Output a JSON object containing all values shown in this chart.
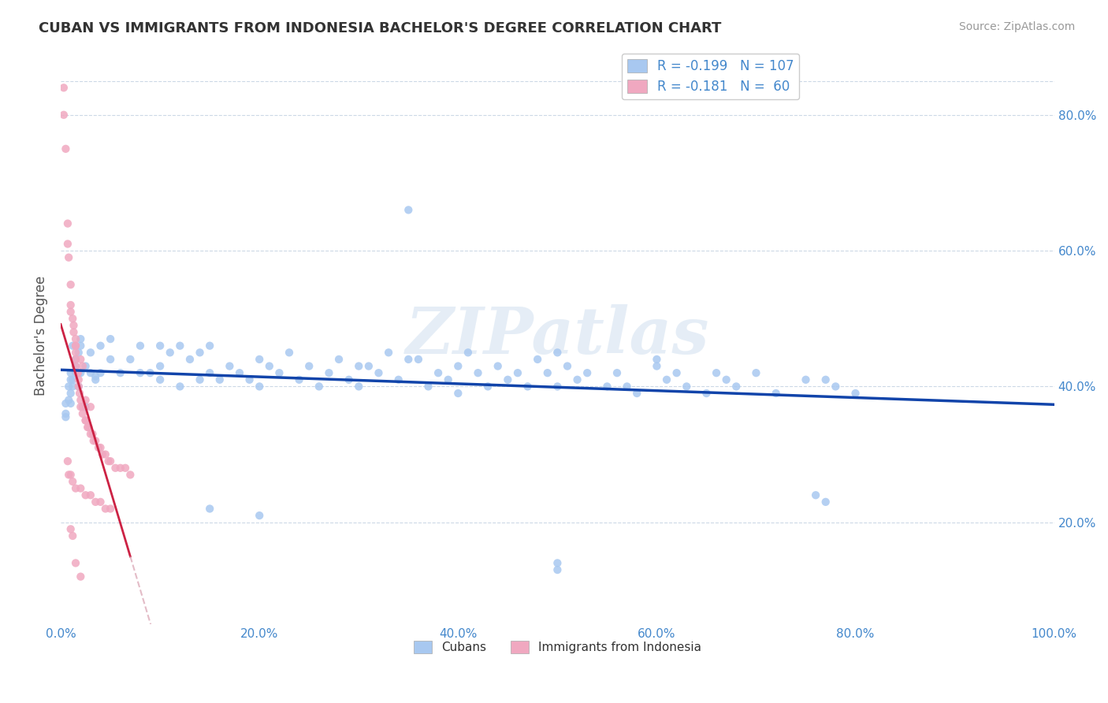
{
  "title": "CUBAN VS IMMIGRANTS FROM INDONESIA BACHELOR'S DEGREE CORRELATION CHART",
  "source": "Source: ZipAtlas.com",
  "ylabel": "Bachelor's Degree",
  "xlim": [
    0,
    1.0
  ],
  "ylim": [
    0.05,
    0.9
  ],
  "xtick_vals": [
    0.0,
    0.2,
    0.4,
    0.6,
    0.8,
    1.0
  ],
  "ytick_vals": [
    0.2,
    0.4,
    0.6,
    0.8
  ],
  "cubans_color": "#A8C8F0",
  "indonesia_color": "#F0A8C0",
  "trendline_cubans_color": "#1144AA",
  "trendline_indonesia_color": "#CC2244",
  "trendline_indonesia_dash_color": "#D8A0B0",
  "watermark": "ZIPatlas",
  "cubans_scatter": [
    [
      0.005,
      0.375
    ],
    [
      0.005,
      0.355
    ],
    [
      0.005,
      0.36
    ],
    [
      0.008,
      0.4
    ],
    [
      0.008,
      0.38
    ],
    [
      0.01,
      0.42
    ],
    [
      0.01,
      0.39
    ],
    [
      0.01,
      0.375
    ],
    [
      0.01,
      0.41
    ],
    [
      0.012,
      0.41
    ],
    [
      0.012,
      0.4
    ],
    [
      0.012,
      0.46
    ],
    [
      0.015,
      0.44
    ],
    [
      0.015,
      0.43
    ],
    [
      0.015,
      0.42
    ],
    [
      0.018,
      0.45
    ],
    [
      0.018,
      0.42
    ],
    [
      0.018,
      0.4
    ],
    [
      0.02,
      0.47
    ],
    [
      0.02,
      0.42
    ],
    [
      0.02,
      0.46
    ],
    [
      0.025,
      0.43
    ],
    [
      0.025,
      0.37
    ],
    [
      0.03,
      0.45
    ],
    [
      0.03,
      0.42
    ],
    [
      0.035,
      0.415
    ],
    [
      0.035,
      0.41
    ],
    [
      0.04,
      0.46
    ],
    [
      0.04,
      0.42
    ],
    [
      0.05,
      0.47
    ],
    [
      0.05,
      0.44
    ],
    [
      0.06,
      0.42
    ],
    [
      0.07,
      0.44
    ],
    [
      0.08,
      0.46
    ],
    [
      0.08,
      0.42
    ],
    [
      0.09,
      0.42
    ],
    [
      0.1,
      0.46
    ],
    [
      0.1,
      0.43
    ],
    [
      0.1,
      0.41
    ],
    [
      0.11,
      0.45
    ],
    [
      0.12,
      0.46
    ],
    [
      0.12,
      0.4
    ],
    [
      0.13,
      0.44
    ],
    [
      0.14,
      0.45
    ],
    [
      0.14,
      0.41
    ],
    [
      0.15,
      0.42
    ],
    [
      0.15,
      0.46
    ],
    [
      0.16,
      0.41
    ],
    [
      0.17,
      0.43
    ],
    [
      0.18,
      0.42
    ],
    [
      0.19,
      0.41
    ],
    [
      0.2,
      0.44
    ],
    [
      0.2,
      0.4
    ],
    [
      0.21,
      0.43
    ],
    [
      0.22,
      0.42
    ],
    [
      0.23,
      0.45
    ],
    [
      0.24,
      0.41
    ],
    [
      0.25,
      0.43
    ],
    [
      0.26,
      0.4
    ],
    [
      0.27,
      0.42
    ],
    [
      0.28,
      0.44
    ],
    [
      0.29,
      0.41
    ],
    [
      0.3,
      0.43
    ],
    [
      0.3,
      0.4
    ],
    [
      0.31,
      0.43
    ],
    [
      0.32,
      0.42
    ],
    [
      0.33,
      0.45
    ],
    [
      0.34,
      0.41
    ],
    [
      0.35,
      0.66
    ],
    [
      0.35,
      0.44
    ],
    [
      0.36,
      0.44
    ],
    [
      0.37,
      0.4
    ],
    [
      0.38,
      0.42
    ],
    [
      0.39,
      0.41
    ],
    [
      0.4,
      0.43
    ],
    [
      0.4,
      0.39
    ],
    [
      0.41,
      0.45
    ],
    [
      0.42,
      0.42
    ],
    [
      0.43,
      0.4
    ],
    [
      0.44,
      0.43
    ],
    [
      0.45,
      0.41
    ],
    [
      0.46,
      0.42
    ],
    [
      0.47,
      0.4
    ],
    [
      0.48,
      0.44
    ],
    [
      0.49,
      0.42
    ],
    [
      0.5,
      0.14
    ],
    [
      0.5,
      0.13
    ],
    [
      0.5,
      0.45
    ],
    [
      0.5,
      0.4
    ],
    [
      0.51,
      0.43
    ],
    [
      0.52,
      0.41
    ],
    [
      0.53,
      0.42
    ],
    [
      0.55,
      0.4
    ],
    [
      0.56,
      0.42
    ],
    [
      0.57,
      0.4
    ],
    [
      0.58,
      0.39
    ],
    [
      0.6,
      0.43
    ],
    [
      0.6,
      0.44
    ],
    [
      0.61,
      0.41
    ],
    [
      0.62,
      0.42
    ],
    [
      0.63,
      0.4
    ],
    [
      0.65,
      0.39
    ],
    [
      0.66,
      0.42
    ],
    [
      0.67,
      0.41
    ],
    [
      0.68,
      0.4
    ],
    [
      0.7,
      0.42
    ],
    [
      0.72,
      0.39
    ],
    [
      0.75,
      0.41
    ],
    [
      0.76,
      0.24
    ],
    [
      0.77,
      0.23
    ],
    [
      0.77,
      0.41
    ],
    [
      0.78,
      0.4
    ],
    [
      0.8,
      0.39
    ],
    [
      0.15,
      0.22
    ],
    [
      0.2,
      0.21
    ]
  ],
  "indonesia_scatter": [
    [
      0.003,
      0.84
    ],
    [
      0.003,
      0.8
    ],
    [
      0.005,
      0.75
    ],
    [
      0.007,
      0.64
    ],
    [
      0.007,
      0.61
    ],
    [
      0.008,
      0.59
    ],
    [
      0.01,
      0.55
    ],
    [
      0.01,
      0.52
    ],
    [
      0.01,
      0.51
    ],
    [
      0.012,
      0.5
    ],
    [
      0.013,
      0.49
    ],
    [
      0.013,
      0.48
    ],
    [
      0.015,
      0.47
    ],
    [
      0.015,
      0.46
    ],
    [
      0.015,
      0.46
    ],
    [
      0.015,
      0.45
    ],
    [
      0.015,
      0.44
    ],
    [
      0.015,
      0.43
    ],
    [
      0.017,
      0.42
    ],
    [
      0.017,
      0.42
    ],
    [
      0.018,
      0.41
    ],
    [
      0.018,
      0.4
    ],
    [
      0.019,
      0.39
    ],
    [
      0.02,
      0.38
    ],
    [
      0.02,
      0.37
    ],
    [
      0.022,
      0.37
    ],
    [
      0.022,
      0.36
    ],
    [
      0.025,
      0.35
    ],
    [
      0.025,
      0.35
    ],
    [
      0.027,
      0.34
    ],
    [
      0.028,
      0.34
    ],
    [
      0.03,
      0.33
    ],
    [
      0.032,
      0.33
    ],
    [
      0.033,
      0.32
    ],
    [
      0.035,
      0.32
    ],
    [
      0.038,
      0.31
    ],
    [
      0.04,
      0.31
    ],
    [
      0.042,
      0.3
    ],
    [
      0.045,
      0.3
    ],
    [
      0.048,
      0.29
    ],
    [
      0.05,
      0.29
    ],
    [
      0.055,
      0.28
    ],
    [
      0.06,
      0.28
    ],
    [
      0.065,
      0.28
    ],
    [
      0.07,
      0.27
    ],
    [
      0.01,
      0.27
    ],
    [
      0.012,
      0.26
    ],
    [
      0.015,
      0.25
    ],
    [
      0.02,
      0.25
    ],
    [
      0.025,
      0.24
    ],
    [
      0.03,
      0.24
    ],
    [
      0.035,
      0.23
    ],
    [
      0.04,
      0.23
    ],
    [
      0.045,
      0.22
    ],
    [
      0.05,
      0.22
    ],
    [
      0.01,
      0.19
    ],
    [
      0.012,
      0.18
    ],
    [
      0.015,
      0.14
    ],
    [
      0.02,
      0.12
    ],
    [
      0.007,
      0.29
    ],
    [
      0.008,
      0.27
    ],
    [
      0.02,
      0.44
    ],
    [
      0.022,
      0.43
    ],
    [
      0.025,
      0.38
    ],
    [
      0.03,
      0.37
    ]
  ]
}
